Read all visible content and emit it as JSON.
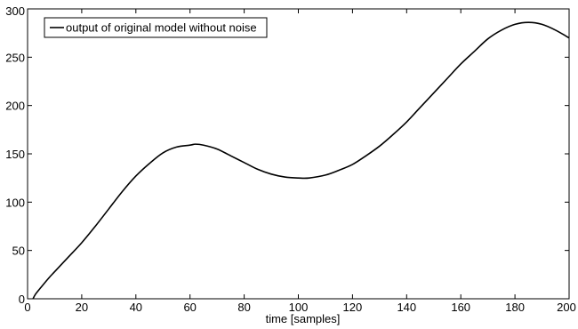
{
  "chart_data": {
    "type": "line",
    "title": "",
    "xlabel": "time [samples]",
    "ylabel": "",
    "xlim": [
      0,
      200
    ],
    "ylim": [
      0,
      300
    ],
    "xticks": [
      0,
      20,
      40,
      60,
      80,
      100,
      120,
      140,
      160,
      180,
      200
    ],
    "yticks": [
      0,
      50,
      100,
      150,
      200,
      250,
      300
    ],
    "grid": false,
    "legend_position": "top-left",
    "series": [
      {
        "name": "output of original model without noise",
        "color": "#000000",
        "x": [
          2,
          3,
          5,
          8,
          10,
          15,
          20,
          25,
          30,
          35,
          40,
          45,
          50,
          55,
          60,
          62,
          65,
          70,
          75,
          80,
          85,
          90,
          95,
          100,
          104,
          110,
          115,
          120,
          125,
          130,
          135,
          140,
          145,
          150,
          155,
          160,
          165,
          170,
          175,
          180,
          185,
          190,
          195,
          200
        ],
        "y": [
          0,
          5,
          12,
          22,
          28,
          43,
          58,
          75,
          93,
          111,
          127,
          140,
          151,
          157,
          159,
          160,
          159,
          155,
          148,
          141,
          134,
          129,
          126,
          125,
          125,
          128,
          133,
          139,
          148,
          158,
          170,
          183,
          198,
          213,
          228,
          243,
          256,
          269,
          278,
          284,
          286,
          284,
          278,
          270
        ]
      }
    ]
  }
}
